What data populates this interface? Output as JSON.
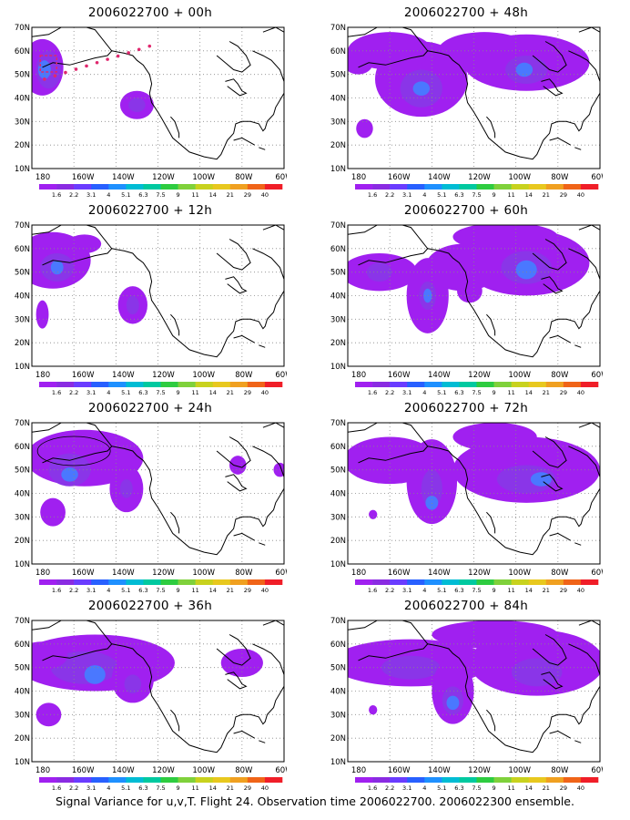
{
  "panels": [
    {
      "title": "2006022700 + 00h"
    },
    {
      "title": "2006022700 + 48h"
    },
    {
      "title": "2006022700 + 12h"
    },
    {
      "title": "2006022700 + 60h"
    },
    {
      "title": "2006022700 + 24h"
    },
    {
      "title": "2006022700 + 72h"
    },
    {
      "title": "2006022700 + 36h"
    },
    {
      "title": "2006022700 + 84h"
    }
  ],
  "lat_labels": [
    "70N",
    "60N",
    "50N",
    "40N",
    "30N",
    "20N",
    "10N"
  ],
  "lon_labels": [
    "180",
    "160W",
    "140W",
    "120W",
    "100W",
    "80W",
    "60W"
  ],
  "colorbar": {
    "levels": [
      "1.6",
      "2.2",
      "3.1",
      "4",
      "5.1",
      "6.3",
      "7.5",
      "9",
      "11",
      "14",
      "21",
      "29",
      "40"
    ],
    "colors": [
      "#a020f0",
      "#8a2be2",
      "#6a3cff",
      "#2860ff",
      "#1e90ff",
      "#00bcd4",
      "#00c9a0",
      "#2ecc40",
      "#7fd13b",
      "#c8d21e",
      "#e8c81e",
      "#f0a020",
      "#f06418",
      "#f01e28"
    ]
  },
  "caption": "Signal Variance for u,v,T. Flight 24. Observation time 2006022700. 2006022300 ensemble.",
  "colors": {
    "outer": "#a020f0",
    "middle": "#8a35e8",
    "inner": "#4a78ff",
    "core": "#28b4f0",
    "grid": "#888888",
    "track": "#e0286e"
  }
}
